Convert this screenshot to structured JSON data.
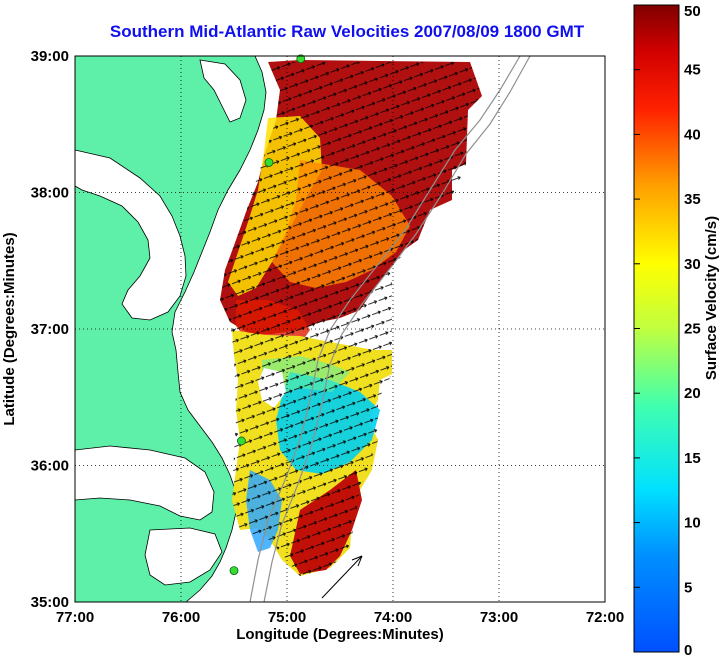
{
  "title": "Southern Mid-Atlantic Raw Velocities 2007/08/09 1800 GMT",
  "axes": {
    "xlabel": "Longitude (Degrees:Minutes)",
    "ylabel": "Latitude (Degrees:Minutes)",
    "x_ticks": [
      "77:00",
      "76:00",
      "75:00",
      "74:00",
      "73:00",
      "72:00"
    ],
    "y_ticks": [
      "39:00",
      "38:00",
      "37:00",
      "36:00",
      "35:00"
    ],
    "xlim": [
      -77,
      -72
    ],
    "ylim": [
      35,
      39
    ],
    "grid": true
  },
  "colorbar": {
    "label": "Surface Velocity (cm/s)",
    "ticks": [
      "50",
      "45",
      "40",
      "35",
      "30",
      "25",
      "20",
      "15",
      "10",
      "5",
      "0"
    ],
    "range": [
      0,
      50
    ],
    "colormap": "jet"
  },
  "colors": {
    "land": "#5ef0a8",
    "water": "#ffffff",
    "title": "#1010ee",
    "station": "#33dd33"
  },
  "stations": [
    {
      "lon": -74.87,
      "lat": 38.98
    },
    {
      "lon": -75.17,
      "lat": 38.22
    },
    {
      "lon": -75.43,
      "lat": 36.18
    },
    {
      "lon": -75.5,
      "lat": 35.23
    }
  ]
}
